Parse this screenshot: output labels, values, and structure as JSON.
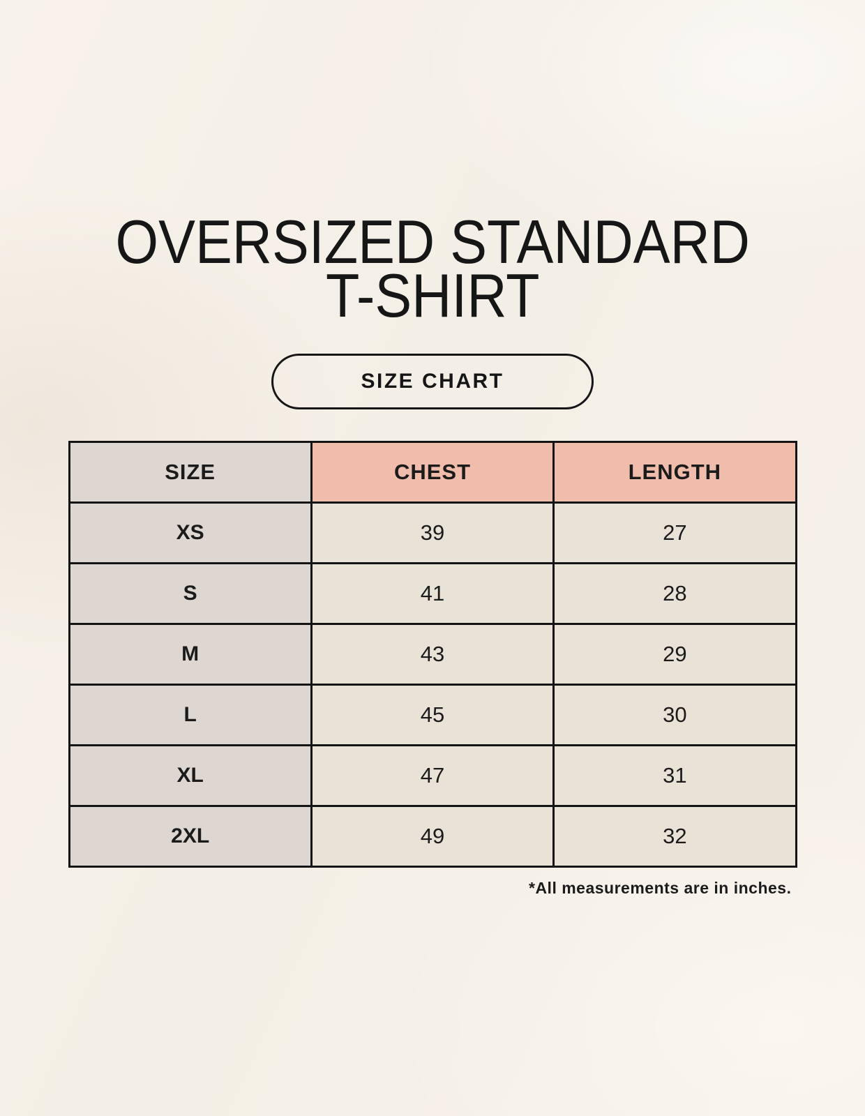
{
  "page": {
    "title_line1": "OVERSIZED STANDARD",
    "title_line2": "T-SHIRT",
    "size_chart_button_label": "SIZE CHART",
    "footnote": "*All measurements are in inches."
  },
  "colors": {
    "background": "#f5f0e7",
    "size_column_bg": "#ded6d0",
    "measure_header_bg": "#f0bcab",
    "data_cell_bg": "#e9e2d7",
    "border": "#141414",
    "text": "#1b1b1b"
  },
  "table": {
    "headers": [
      "SIZE",
      "CHEST",
      "LENGTH"
    ],
    "rows": [
      {
        "size": "XS",
        "chest": "39",
        "length": "27"
      },
      {
        "size": "S",
        "chest": "41",
        "length": "28"
      },
      {
        "size": "M",
        "chest": "43",
        "length": "29"
      },
      {
        "size": "L",
        "chest": "45",
        "length": "30"
      },
      {
        "size": "XL",
        "chest": "47",
        "length": "31"
      },
      {
        "size": "2XL",
        "chest": "49",
        "length": "32"
      }
    ]
  },
  "chart_data": {
    "type": "table",
    "title": "OVERSIZED STANDARD T-SHIRT",
    "subtitle": "SIZE CHART",
    "columns": [
      "SIZE",
      "CHEST",
      "LENGTH"
    ],
    "rows": [
      [
        "XS",
        39,
        27
      ],
      [
        "S",
        41,
        28
      ],
      [
        "M",
        43,
        29
      ],
      [
        "L",
        45,
        30
      ],
      [
        "XL",
        47,
        31
      ],
      [
        "2XL",
        49,
        32
      ]
    ],
    "note": "*All measurements are in inches."
  }
}
